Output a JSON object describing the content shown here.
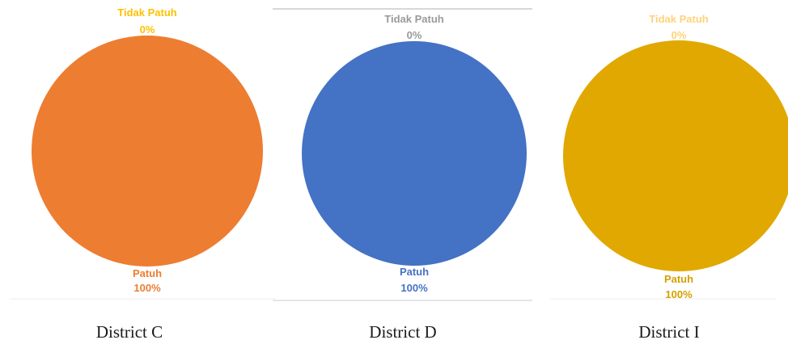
{
  "chart_data": [
    {
      "type": "pie",
      "caption": "District C",
      "slices": [
        {
          "label": "Patuh",
          "value": 100,
          "display": "100%",
          "color": "#ED7D31",
          "label_color": "#ED7D31"
        },
        {
          "label": "Tidak Patuh",
          "value": 0,
          "display": "0%",
          "color": "#FFC000",
          "label_color": "#FFC000"
        }
      ],
      "legend": "none"
    },
    {
      "type": "pie",
      "caption": "District D",
      "slices": [
        {
          "label": "Patuh",
          "value": 100,
          "display": "100%",
          "color": "#4472C4",
          "label_color": "#4472C4"
        },
        {
          "label": "Tidak Patuh",
          "value": 0,
          "display": "0%",
          "color": "#A5A5A5",
          "label_color": "#9A9A9A"
        }
      ],
      "legend": "none"
    },
    {
      "type": "pie",
      "caption": "District I",
      "slices": [
        {
          "label": "Patuh",
          "value": 100,
          "display": "100%",
          "color": "#E0A800",
          "label_color": "#D4A000"
        },
        {
          "label": "Tidak Patuh",
          "value": 0,
          "display": "0%",
          "color": "#FFD27A",
          "label_color": "#FFD27A"
        }
      ],
      "legend": "none"
    }
  ]
}
